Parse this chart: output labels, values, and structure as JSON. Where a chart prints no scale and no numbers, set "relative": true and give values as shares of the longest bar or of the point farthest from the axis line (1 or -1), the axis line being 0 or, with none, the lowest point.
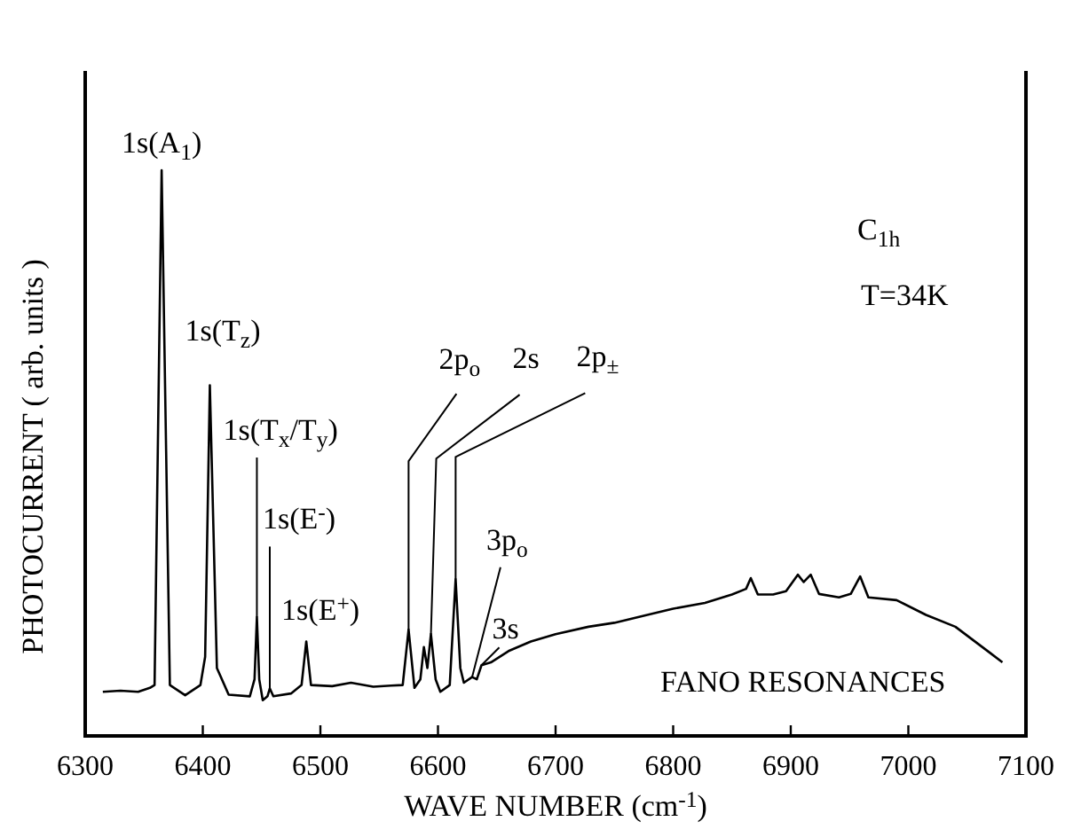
{
  "chart_data": {
    "type": "line",
    "relative": true,
    "xlabel": "WAVE NUMBER (cm$^{-1}$)",
    "ylabel": "PHOTOCURRENT ( arb. units )",
    "xlim": [
      6300,
      7100
    ],
    "xticks": [
      6300,
      6400,
      6500,
      6600,
      6700,
      6800,
      6900,
      7000,
      7100
    ],
    "x": [
      6315,
      6330,
      6345,
      6355,
      6359,
      6365,
      6372,
      6385,
      6398,
      6402,
      6406,
      6412,
      6422,
      6440,
      6444,
      6446,
      6448,
      6451,
      6455,
      6457,
      6460,
      6475,
      6484,
      6488,
      6492,
      6510,
      6526,
      6545,
      6560,
      6570,
      6575,
      6580,
      6585,
      6588,
      6591,
      6594,
      6598,
      6602,
      6610,
      6615,
      6619,
      6622,
      6629,
      6633,
      6637,
      6645,
      6660,
      6679,
      6700,
      6728,
      6750,
      6778,
      6800,
      6827,
      6850,
      6862,
      6866,
      6872,
      6885,
      6896,
      6906,
      6911,
      6917,
      6924,
      6941,
      6951,
      6959,
      6966,
      6990,
      7015,
      7040,
      7070,
      7080
    ],
    "series": [
      {
        "color": "#000000",
        "values": [
          0.078,
          0.08,
          0.078,
          0.085,
          0.09,
          1,
          0.09,
          0.072,
          0.09,
          0.14,
          0.62,
          0.12,
          0.073,
          0.07,
          0.1,
          0.21,
          0.1,
          0.063,
          0.07,
          0.084,
          0.07,
          0.075,
          0.09,
          0.167,
          0.09,
          0.088,
          0.094,
          0.087,
          0.089,
          0.09,
          0.188,
          0.085,
          0.1,
          0.157,
          0.12,
          0.18,
          0.1,
          0.078,
          0.09,
          0.277,
          0.12,
          0.094,
          0.104,
          0.1,
          0.125,
          0.13,
          0.15,
          0.167,
          0.18,
          0.193,
          0.2,
          0.214,
          0.225,
          0.235,
          0.25,
          0.26,
          0.279,
          0.25,
          0.25,
          0.256,
          0.285,
          0.272,
          0.285,
          0.251,
          0.245,
          0.251,
          0.282,
          0.245,
          0.24,
          0.214,
          0.193,
          0.146,
          0.13
        ]
      }
    ],
    "annotations": [
      {
        "text": "1s(A$_{1}$)",
        "x": 6365,
        "y": 1
      },
      {
        "text": "1s(T$_{z}$)",
        "x": 6406,
        "y": 0.62
      },
      {
        "text": "1s(T$_{x}$/T$_{y}$)",
        "x": 6446,
        "y": 0.21
      },
      {
        "text": "1s(E$^{-}$)",
        "x": 6457,
        "y": 0.084
      },
      {
        "text": "1s(E$^{+}$)",
        "x": 6488,
        "y": 0.167
      },
      {
        "text": "2p$_{o}$",
        "x": 6575,
        "y": 0.188
      },
      {
        "text": "2s",
        "x": 6594,
        "y": 0.18
      },
      {
        "text": "2p$_{±}$",
        "x": 6615,
        "y": 0.277
      },
      {
        "text": "3p$_{o}$",
        "x": 6629,
        "y": 0.104
      },
      {
        "text": "3s",
        "x": 6637,
        "y": 0.125
      },
      "C$_{1h}$",
      "T=34K",
      "FANO RESONANCES"
    ],
    "grid": false
  }
}
